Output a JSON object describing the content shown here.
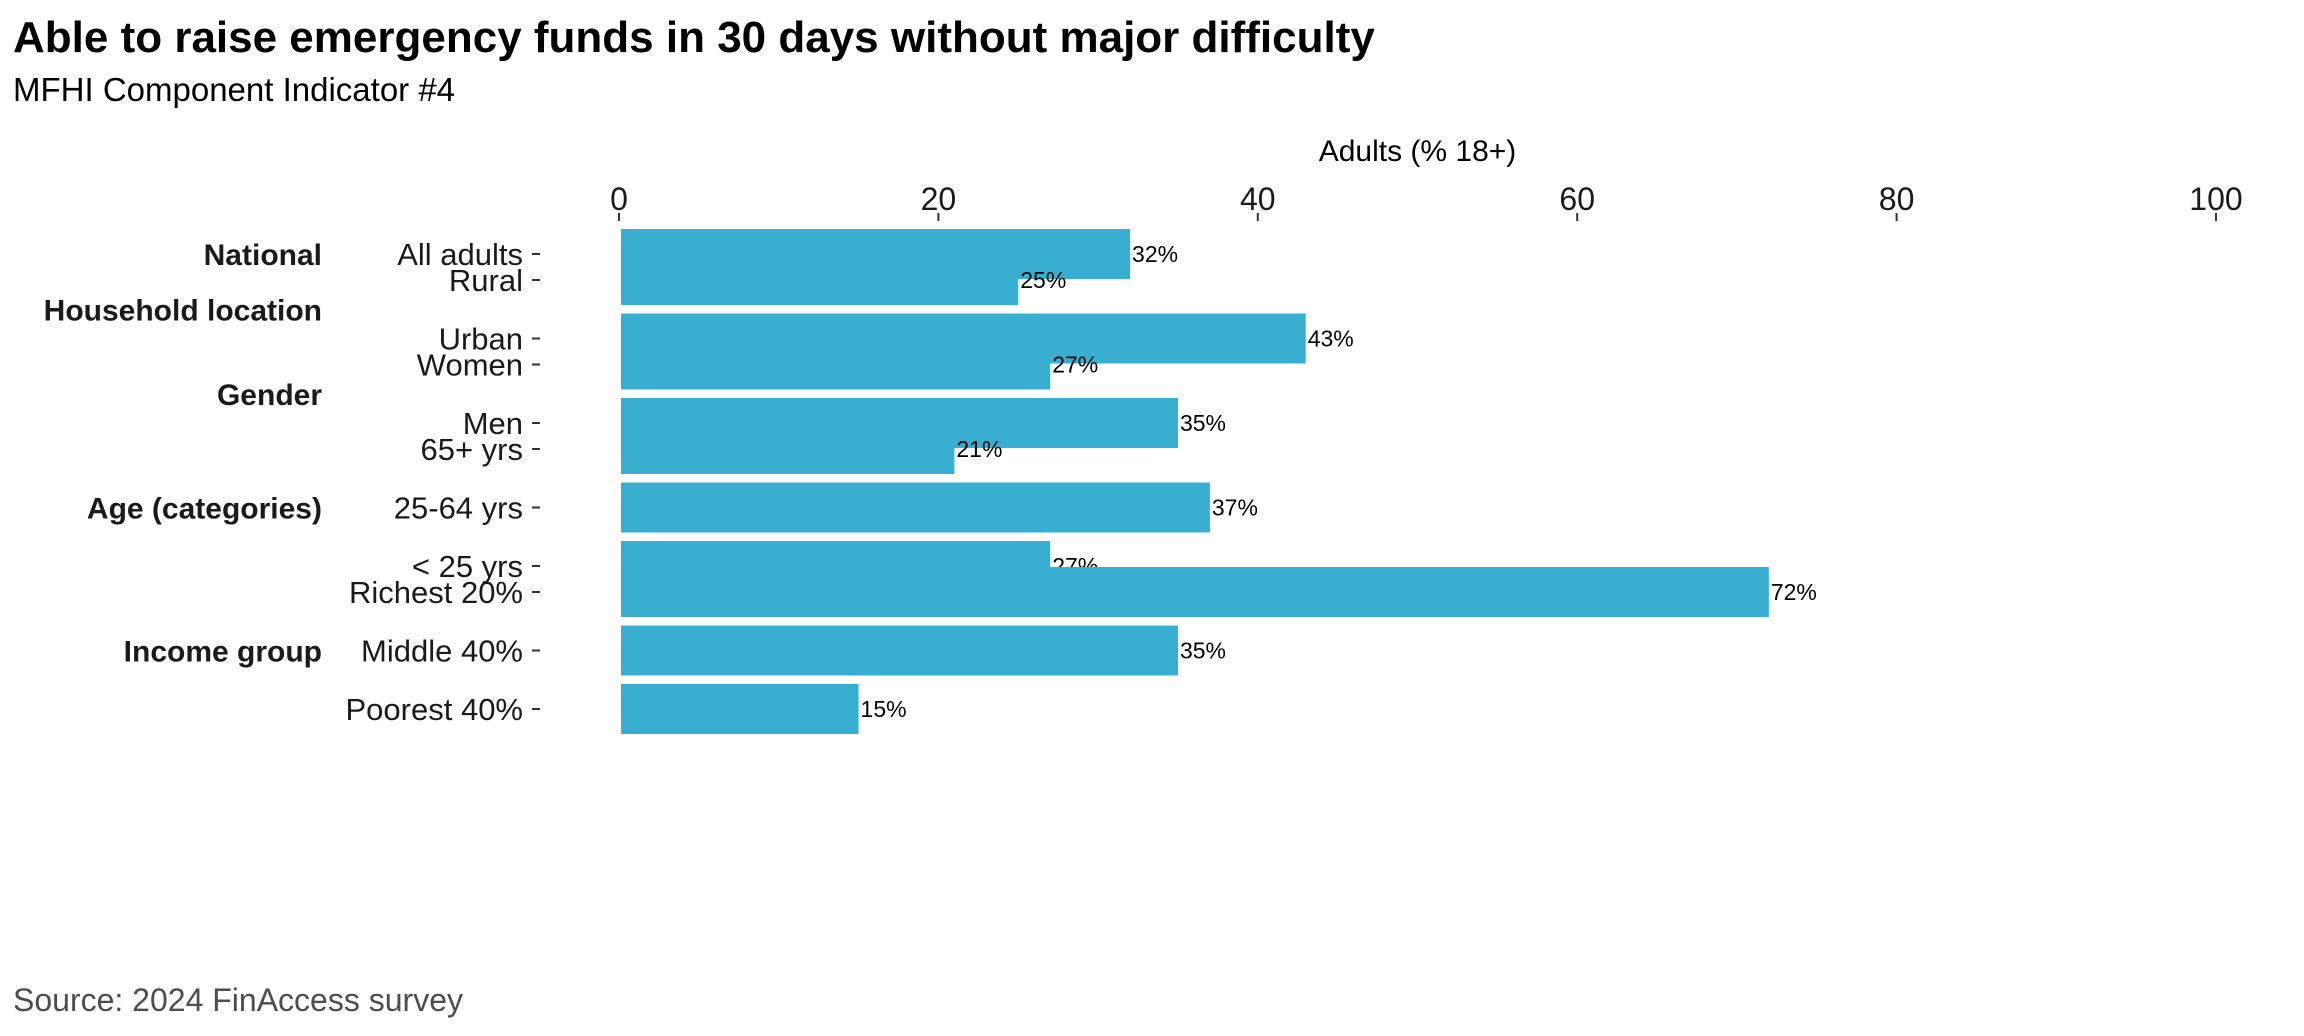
{
  "title": "Able to raise emergency funds in 30 days without major difficulty",
  "subtitle": "MFHI Component Indicator #4",
  "source": "Source: 2024 FinAccess survey",
  "chart_data": {
    "type": "bar",
    "orientation": "horizontal",
    "x_axis_label": "Adults (% 18+)",
    "xlim": [
      0,
      100
    ],
    "x_ticks": [
      0,
      20,
      40,
      60,
      80,
      100
    ],
    "x_axis_position": "top",
    "grid": false,
    "bar_color": "#38AED1",
    "groups": [
      {
        "name": "National",
        "categories": [
          "All adults"
        ],
        "values": [
          32
        ],
        "labels": [
          "32%"
        ]
      },
      {
        "name": "Household location",
        "categories": [
          "Rural",
          "Urban"
        ],
        "values": [
          25,
          43
        ],
        "labels": [
          "25%",
          "43%"
        ]
      },
      {
        "name": "Gender",
        "categories": [
          "Women",
          "Men"
        ],
        "values": [
          27,
          35
        ],
        "labels": [
          "27%",
          "35%"
        ]
      },
      {
        "name": "Age (categories)",
        "categories": [
          "65+ yrs",
          "25-64 yrs",
          "< 25 yrs"
        ],
        "values": [
          21,
          37,
          27
        ],
        "labels": [
          "21%",
          "37%",
          "27%"
        ]
      },
      {
        "name": "Income group",
        "categories": [
          "Richest 20%",
          "Middle 40%",
          "Poorest 40%"
        ],
        "values": [
          72,
          35,
          15
        ],
        "labels": [
          "72%",
          "35%",
          "15%"
        ]
      }
    ]
  }
}
